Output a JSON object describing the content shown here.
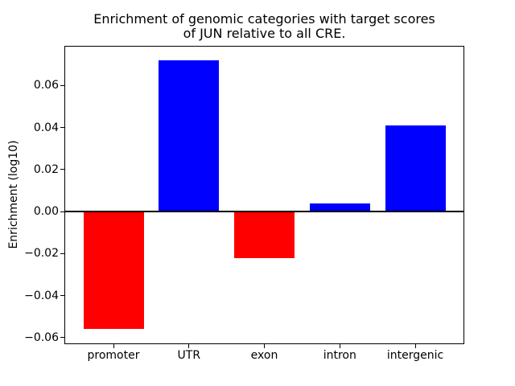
{
  "figure": {
    "title_line1": "Enrichment of genomic categories with target scores",
    "title_line2": "of JUN relative to all CRE."
  },
  "chart_data": {
    "type": "bar",
    "title": "Enrichment of genomic categories with target scores\nof JUN relative to all CRE.",
    "xlabel": "",
    "ylabel": "Enrichment (log10)",
    "categories": [
      "promoter",
      "UTR",
      "exon",
      "intron",
      "intergenic"
    ],
    "values": [
      -0.056,
      0.072,
      -0.022,
      0.004,
      0.041
    ],
    "bar_colors": [
      "#ff0000",
      "#0000ff",
      "#ff0000",
      "#0000ff",
      "#0000ff"
    ],
    "bar_width_fraction": 0.8,
    "yticks": [
      {
        "value": -0.06,
        "label": "−0.06"
      },
      {
        "value": -0.04,
        "label": "−0.04"
      },
      {
        "value": -0.02,
        "label": "−0.02"
      },
      {
        "value": 0.0,
        "label": "0.00"
      },
      {
        "value": 0.02,
        "label": "0.02"
      },
      {
        "value": 0.04,
        "label": "0.04"
      },
      {
        "value": 0.06,
        "label": "0.06"
      }
    ],
    "ylim": [
      -0.0627,
      0.0785
    ],
    "xlim": [
      -0.64,
      4.64
    ],
    "zero_line": true,
    "zero_line_color": "#000000",
    "grid": false,
    "legend": null,
    "spine_color": "#000000",
    "positive_color": "#0000ff",
    "negative_color": "#ff0000"
  }
}
